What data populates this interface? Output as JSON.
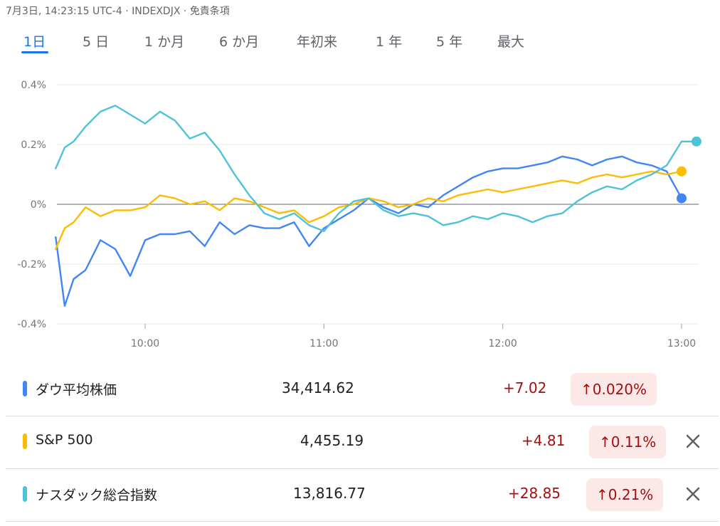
{
  "header": {
    "text": "7月3日, 14:23:15 UTC-4 · INDEXDJX · 免責条項"
  },
  "tabs": [
    "1日",
    "5 日",
    "1 か月",
    "6 か月",
    "年初来",
    "1 年",
    "5 年",
    "最大"
  ],
  "active_tab": "1日",
  "colors": {
    "dow": "#4285f4",
    "sp500": "#fbbc04",
    "nasdaq": "#4ec3d8",
    "up_text": "#a50e0e",
    "up_bg": "#fce8e6",
    "accent": "#1a73e8"
  },
  "chart_data": {
    "type": "line",
    "x_ticks": [
      "10:00",
      "11:00",
      "12:00",
      "13:00"
    ],
    "y_ticks": [
      "0.4%",
      "0.2%",
      "0%",
      "-0.2%",
      "-0.4%"
    ],
    "ylim": [
      -0.4,
      0.4
    ],
    "x_range": [
      "09:30",
      "13:05"
    ],
    "grid": true,
    "series": [
      {
        "name": "ダウ平均株価",
        "x": [
          "09:30",
          "09:33",
          "09:36",
          "09:40",
          "09:45",
          "09:50",
          "09:55",
          "10:00",
          "10:05",
          "10:10",
          "10:15",
          "10:20",
          "10:25",
          "10:30",
          "10:35",
          "10:40",
          "10:45",
          "10:50",
          "10:55",
          "11:00",
          "11:05",
          "11:10",
          "11:15",
          "11:20",
          "11:25",
          "11:30",
          "11:35",
          "11:40",
          "11:45",
          "11:50",
          "11:55",
          "12:00",
          "12:05",
          "12:10",
          "12:15",
          "12:20",
          "12:25",
          "12:30",
          "12:35",
          "12:40",
          "12:45",
          "12:50",
          "12:55",
          "13:00"
        ],
        "y": [
          -0.11,
          -0.34,
          -0.25,
          -0.22,
          -0.12,
          -0.15,
          -0.24,
          -0.12,
          -0.1,
          -0.1,
          -0.09,
          -0.14,
          -0.06,
          -0.1,
          -0.07,
          -0.08,
          -0.08,
          -0.06,
          -0.14,
          -0.08,
          -0.05,
          -0.02,
          0.02,
          -0.01,
          -0.03,
          0.0,
          -0.01,
          0.03,
          0.06,
          0.09,
          0.11,
          0.12,
          0.12,
          0.13,
          0.14,
          0.16,
          0.15,
          0.13,
          0.15,
          0.16,
          0.14,
          0.13,
          0.11,
          0.02
        ]
      },
      {
        "name": "S&P 500",
        "x": [
          "09:30",
          "09:33",
          "09:36",
          "09:40",
          "09:45",
          "09:50",
          "09:55",
          "10:00",
          "10:05",
          "10:10",
          "10:15",
          "10:20",
          "10:25",
          "10:30",
          "10:35",
          "10:40",
          "10:45",
          "10:50",
          "10:55",
          "11:00",
          "11:05",
          "11:10",
          "11:15",
          "11:20",
          "11:25",
          "11:30",
          "11:35",
          "11:40",
          "11:45",
          "11:50",
          "11:55",
          "12:00",
          "12:05",
          "12:10",
          "12:15",
          "12:20",
          "12:25",
          "12:30",
          "12:35",
          "12:40",
          "12:45",
          "12:50",
          "12:55",
          "13:00"
        ],
        "y": [
          -0.15,
          -0.08,
          -0.06,
          -0.01,
          -0.04,
          -0.02,
          -0.02,
          -0.01,
          0.03,
          0.02,
          0.0,
          0.01,
          -0.02,
          0.02,
          0.01,
          -0.01,
          -0.03,
          -0.02,
          -0.06,
          -0.04,
          -0.01,
          0.0,
          0.02,
          0.01,
          -0.01,
          0.0,
          0.02,
          0.01,
          0.03,
          0.04,
          0.05,
          0.04,
          0.05,
          0.06,
          0.07,
          0.08,
          0.07,
          0.09,
          0.1,
          0.09,
          0.1,
          0.11,
          0.1,
          0.11
        ]
      },
      {
        "name": "ナスダック総合指数",
        "x": [
          "09:30",
          "09:33",
          "09:36",
          "09:40",
          "09:45",
          "09:50",
          "09:55",
          "10:00",
          "10:05",
          "10:10",
          "10:15",
          "10:20",
          "10:25",
          "10:30",
          "10:35",
          "10:40",
          "10:45",
          "10:50",
          "10:55",
          "11:00",
          "11:05",
          "11:10",
          "11:15",
          "11:20",
          "11:25",
          "11:30",
          "11:35",
          "11:40",
          "11:45",
          "11:50",
          "11:55",
          "12:00",
          "12:05",
          "12:10",
          "12:15",
          "12:20",
          "12:25",
          "12:30",
          "12:35",
          "12:40",
          "12:45",
          "12:50",
          "12:55",
          "13:00",
          "13:05"
        ],
        "y": [
          0.12,
          0.19,
          0.21,
          0.26,
          0.31,
          0.33,
          0.3,
          0.27,
          0.31,
          0.28,
          0.22,
          0.24,
          0.18,
          0.1,
          0.03,
          -0.03,
          -0.05,
          -0.03,
          -0.07,
          -0.09,
          -0.03,
          0.01,
          0.02,
          -0.02,
          -0.04,
          -0.03,
          -0.04,
          -0.07,
          -0.06,
          -0.04,
          -0.05,
          -0.03,
          -0.04,
          -0.06,
          -0.04,
          -0.03,
          0.01,
          0.04,
          0.06,
          0.05,
          0.08,
          0.1,
          0.13,
          0.21,
          0.21
        ]
      }
    ]
  },
  "rows": [
    {
      "name": "ダウ平均株価",
      "value": "34,414.62",
      "change": "+7.02",
      "pct": "↑0.020%",
      "closable": false
    },
    {
      "name": "S&P 500",
      "value": "4,455.19",
      "change": "+4.81",
      "pct": "↑0.11%",
      "closable": true
    },
    {
      "name": "ナスダック総合指数",
      "value": "13,816.77",
      "change": "+28.85",
      "pct": "↑0.21%",
      "closable": true
    }
  ]
}
